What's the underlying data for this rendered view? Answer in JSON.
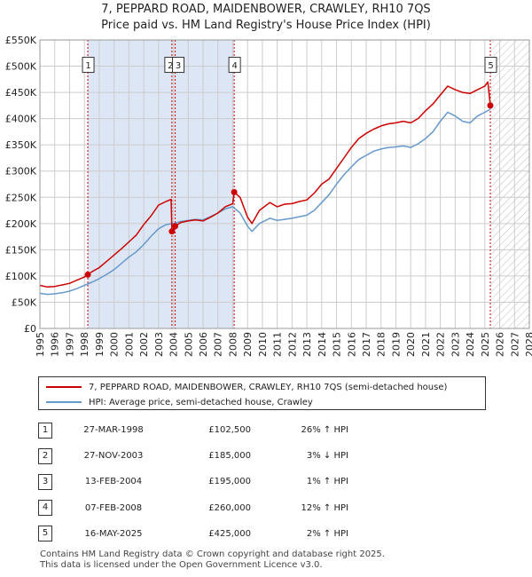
{
  "title_line1": "7, PEPPARD ROAD, MAIDENBOWER, CRAWLEY, RH10 7QS",
  "title_line2": "Price paid vs. HM Land Registry's House Price Index (HPI)",
  "colors": {
    "property": "#cc0000",
    "hpi": "#6699cc",
    "shade": "#dde6f5",
    "grid": "#cccccc"
  },
  "chart_data": {
    "type": "line",
    "ylabel": "",
    "xlabel": "",
    "xlim": [
      1995,
      2028
    ],
    "ylim": [
      0,
      550000
    ],
    "yticks": [
      {
        "v": 0,
        "label": "£0"
      },
      {
        "v": 50000,
        "label": "£50K"
      },
      {
        "v": 100000,
        "label": "£100K"
      },
      {
        "v": 150000,
        "label": "£150K"
      },
      {
        "v": 200000,
        "label": "£200K"
      },
      {
        "v": 250000,
        "label": "£250K"
      },
      {
        "v": 300000,
        "label": "£300K"
      },
      {
        "v": 350000,
        "label": "£350K"
      },
      {
        "v": 400000,
        "label": "£400K"
      },
      {
        "v": 450000,
        "label": "£450K"
      },
      {
        "v": 500000,
        "label": "£500K"
      },
      {
        "v": 550000,
        "label": "£550K"
      }
    ],
    "xticks": [
      "1995",
      "1996",
      "1997",
      "1998",
      "1999",
      "2000",
      "2001",
      "2002",
      "2003",
      "2004",
      "2005",
      "2006",
      "2007",
      "2008",
      "2009",
      "2010",
      "2011",
      "2012",
      "2013",
      "2014",
      "2015",
      "2016",
      "2017",
      "2018",
      "2019",
      "2020",
      "2021",
      "2022",
      "2023",
      "2024",
      "2025",
      "2026",
      "2027",
      "2028"
    ],
    "shaded_between_sales": [
      1998.23,
      2008.1
    ],
    "future_hatch_from": 2025.37,
    "sale_points": [
      {
        "label": "1",
        "x": 1998.23,
        "y": 102500
      },
      {
        "label": "2",
        "x": 2003.9,
        "y": 185000
      },
      {
        "label": "3",
        "x": 2004.12,
        "y": 195000
      },
      {
        "label": "4",
        "x": 2008.1,
        "y": 260000
      },
      {
        "label": "5",
        "x": 2025.37,
        "y": 425000
      }
    ],
    "series": [
      {
        "name": "7, PEPPARD ROAD, MAIDENBOWER, CRAWLEY, RH10 7QS (semi-detached house)",
        "x": [
          1995.0,
          1995.5,
          1996.0,
          1996.5,
          1997.0,
          1997.5,
          1998.0,
          1998.23,
          1998.5,
          1999.0,
          1999.5,
          2000.0,
          2000.5,
          2001.0,
          2001.5,
          2002.0,
          2002.5,
          2003.0,
          2003.5,
          2003.85,
          2003.9,
          2004.0,
          2004.12,
          2004.5,
          2005.0,
          2005.5,
          2006.0,
          2006.5,
          2007.0,
          2007.5,
          2008.0,
          2008.1,
          2008.5,
          2009.0,
          2009.3,
          2009.8,
          2010.5,
          2011.0,
          2011.5,
          2012.0,
          2012.5,
          2013.0,
          2013.5,
          2014.0,
          2014.5,
          2015.0,
          2015.5,
          2016.0,
          2016.5,
          2017.0,
          2017.5,
          2018.0,
          2018.5,
          2019.0,
          2019.5,
          2020.0,
          2020.5,
          2021.0,
          2021.5,
          2022.0,
          2022.5,
          2023.0,
          2023.5,
          2024.0,
          2024.5,
          2025.0,
          2025.2,
          2025.37,
          2025.5
        ],
        "y": [
          82000,
          79000,
          80000,
          83000,
          86000,
          92000,
          98000,
          102500,
          108000,
          116000,
          128000,
          140000,
          152000,
          165000,
          178000,
          198000,
          215000,
          235000,
          242000,
          246000,
          185000,
          186000,
          195000,
          202000,
          205000,
          207000,
          205000,
          212000,
          220000,
          232000,
          238000,
          260000,
          250000,
          212000,
          200000,
          225000,
          240000,
          232000,
          237000,
          238000,
          242000,
          245000,
          258000,
          275000,
          285000,
          305000,
          325000,
          345000,
          362000,
          372000,
          380000,
          386000,
          390000,
          392000,
          395000,
          392000,
          400000,
          415000,
          428000,
          445000,
          462000,
          455000,
          450000,
          448000,
          455000,
          462000,
          470000,
          425000,
          428000
        ]
      },
      {
        "name": "HPI: Average price, semi-detached house, Crawley",
        "x": [
          1995.0,
          1995.5,
          1996.0,
          1996.5,
          1997.0,
          1997.5,
          1998.0,
          1998.5,
          1999.0,
          1999.5,
          2000.0,
          2000.5,
          2001.0,
          2001.5,
          2002.0,
          2002.5,
          2003.0,
          2003.5,
          2004.0,
          2004.5,
          2005.0,
          2005.5,
          2006.0,
          2006.5,
          2007.0,
          2007.5,
          2008.0,
          2008.5,
          2009.0,
          2009.3,
          2009.8,
          2010.5,
          2011.0,
          2011.5,
          2012.0,
          2012.5,
          2013.0,
          2013.5,
          2014.0,
          2014.5,
          2015.0,
          2015.5,
          2016.0,
          2016.5,
          2017.0,
          2017.5,
          2018.0,
          2018.5,
          2019.0,
          2019.5,
          2020.0,
          2020.5,
          2021.0,
          2021.5,
          2022.0,
          2022.5,
          2023.0,
          2023.5,
          2024.0,
          2024.5,
          2025.0,
          2025.37
        ],
        "y": [
          67000,
          65000,
          66000,
          68000,
          71000,
          76000,
          82000,
          88000,
          95000,
          103000,
          112000,
          124000,
          136000,
          146000,
          160000,
          176000,
          190000,
          198000,
          200000,
          204000,
          206000,
          208000,
          207000,
          213000,
          220000,
          228000,
          232000,
          220000,
          195000,
          185000,
          200000,
          210000,
          206000,
          208000,
          210000,
          213000,
          216000,
          225000,
          240000,
          255000,
          275000,
          293000,
          308000,
          322000,
          330000,
          338000,
          342000,
          345000,
          346000,
          348000,
          345000,
          352000,
          362000,
          375000,
          395000,
          412000,
          405000,
          395000,
          392000,
          405000,
          412000,
          418000
        ]
      }
    ]
  },
  "legend": {
    "property_label": "7, PEPPARD ROAD, MAIDENBOWER, CRAWLEY, RH10 7QS (semi-detached house)",
    "hpi_label": "HPI: Average price, semi-detached house, Crawley"
  },
  "sales": [
    {
      "num": "1",
      "date": "27-MAR-1998",
      "price": "£102,500",
      "hpi": "26% ↑ HPI"
    },
    {
      "num": "2",
      "date": "27-NOV-2003",
      "price": "£185,000",
      "hpi": "3% ↓ HPI"
    },
    {
      "num": "3",
      "date": "13-FEB-2004",
      "price": "£195,000",
      "hpi": "1% ↑ HPI"
    },
    {
      "num": "4",
      "date": "07-FEB-2008",
      "price": "£260,000",
      "hpi": "12% ↑ HPI"
    },
    {
      "num": "5",
      "date": "16-MAY-2025",
      "price": "£425,000",
      "hpi": "2% ↑ HPI"
    }
  ],
  "footer_line1": "Contains HM Land Registry data © Crown copyright and database right 2025.",
  "footer_line2": "This data is licensed under the Open Government Licence v3.0."
}
